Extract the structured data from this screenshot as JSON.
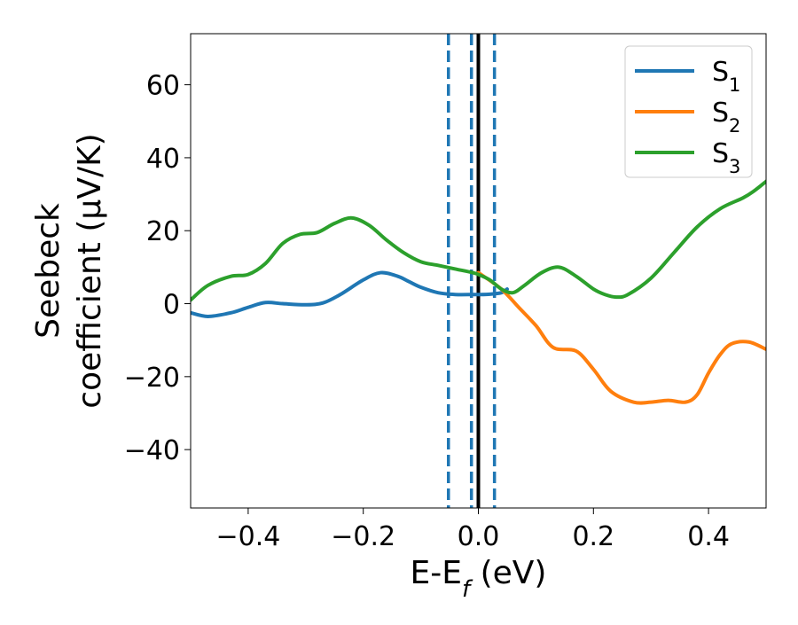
{
  "chart_data": {
    "type": "line",
    "xlabel_main": "E-E",
    "xlabel_sub": "f",
    "xlabel_tail": " (eV)",
    "ylabel_line1": "Seebeck",
    "ylabel_line2": "coefficient  (μV/K)",
    "xlim": [
      -0.5,
      0.5
    ],
    "ylim": [
      -56,
      74
    ],
    "x_ticks": [
      -0.4,
      -0.2,
      0.0,
      0.2,
      0.4
    ],
    "x_tick_labels": [
      "−0.4",
      "−0.2",
      "0.0",
      "0.2",
      "0.4"
    ],
    "y_ticks": [
      -40,
      -20,
      0,
      20,
      40,
      60
    ],
    "y_tick_labels": [
      "−40",
      "−20",
      "0",
      "20",
      "40",
      "60"
    ],
    "grid": false,
    "legend_position": "top-right",
    "vertical_lines": [
      {
        "x": 0.0,
        "style": "solid",
        "color": "#000000"
      },
      {
        "x": -0.052,
        "style": "dashed",
        "color": "#1f77b4"
      },
      {
        "x": -0.012,
        "style": "dashed",
        "color": "#1f77b4"
      },
      {
        "x": 0.028,
        "style": "dashed",
        "color": "#1f77b4"
      }
    ],
    "series": [
      {
        "name": "S",
        "subscript": "1",
        "color": "#1f77b4",
        "x": [
          -0.5,
          -0.47,
          -0.43,
          -0.4,
          -0.37,
          -0.34,
          -0.3,
          -0.27,
          -0.24,
          -0.2,
          -0.17,
          -0.14,
          -0.12,
          -0.1,
          -0.07,
          -0.04,
          -0.01,
          0.0,
          0.02,
          0.04,
          0.05
        ],
        "y": [
          -2.5,
          -3.5,
          -2.5,
          -1.0,
          0.3,
          0.0,
          -0.3,
          0.2,
          2.5,
          6.5,
          8.5,
          7.5,
          6.0,
          4.5,
          3.0,
          2.5,
          2.5,
          2.5,
          2.6,
          3.0,
          4.0
        ]
      },
      {
        "name": "S",
        "subscript": "2",
        "color": "#ff7f0e",
        "x": [
          0.0,
          0.04,
          0.07,
          0.1,
          0.13,
          0.17,
          0.2,
          0.23,
          0.27,
          0.3,
          0.33,
          0.36,
          0.38,
          0.4,
          0.42,
          0.44,
          0.47,
          0.5
        ],
        "y": [
          8.5,
          4.0,
          -1.0,
          -6.0,
          -12.0,
          -13.0,
          -18.0,
          -24.0,
          -27.0,
          -27.0,
          -26.5,
          -27.0,
          -25.0,
          -19.0,
          -14.0,
          -11.0,
          -10.5,
          -12.5
        ]
      },
      {
        "name": "S",
        "subscript": "3",
        "color": "#2ca02c",
        "x": [
          -0.5,
          -0.47,
          -0.43,
          -0.4,
          -0.37,
          -0.34,
          -0.31,
          -0.28,
          -0.25,
          -0.22,
          -0.19,
          -0.16,
          -0.13,
          -0.1,
          -0.07,
          -0.04,
          -0.01,
          0.0,
          0.02,
          0.04,
          0.06,
          0.08,
          0.11,
          0.14,
          0.17,
          0.2,
          0.22,
          0.24,
          0.26,
          0.3,
          0.34,
          0.38,
          0.42,
          0.46,
          0.48,
          0.5
        ],
        "y": [
          1.0,
          5.0,
          7.5,
          8.0,
          11.0,
          16.5,
          19.0,
          19.5,
          22.0,
          23.5,
          21.5,
          17.5,
          14.0,
          11.5,
          10.5,
          9.5,
          8.5,
          8.0,
          6.5,
          4.0,
          3.0,
          5.0,
          8.5,
          10.0,
          7.5,
          4.0,
          2.5,
          1.8,
          2.5,
          7.0,
          14.0,
          21.0,
          26.0,
          29.0,
          31.0,
          33.5
        ]
      }
    ]
  }
}
